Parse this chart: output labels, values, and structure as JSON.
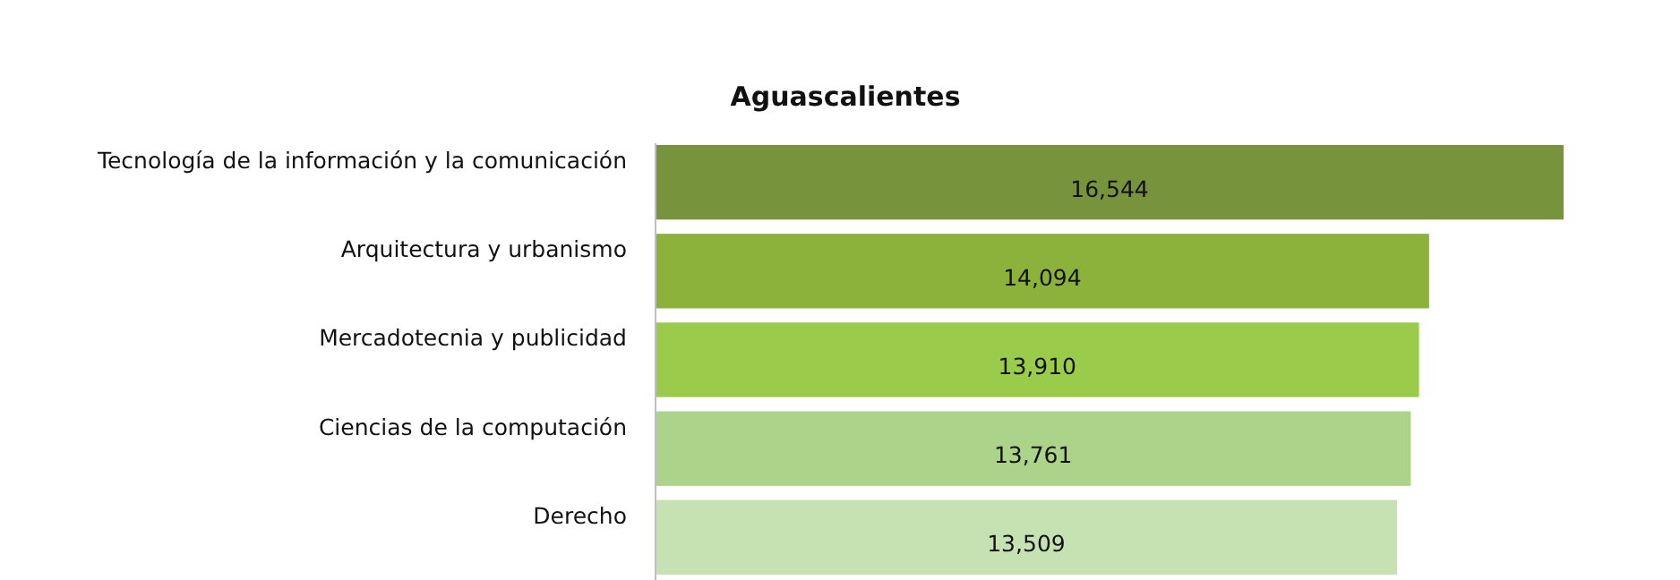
{
  "chart_data": {
    "type": "bar",
    "orientation": "horizontal",
    "title": "Aguascalientes",
    "categories": [
      "Tecnología de la información y la comunicación",
      "Arquitectura y urbanismo",
      "Mercadotecnia y publicidad",
      "Ciencias de la computación",
      "Derecho"
    ],
    "values": [
      16544,
      14094,
      13910,
      13761,
      13509
    ],
    "colors": [
      "#77933c",
      "#8cb23c",
      "#9acb4a",
      "#abd38a",
      "#c6e2b2"
    ],
    "value_labels": [
      "16,544",
      "14,094",
      "13,910",
      "13,761",
      "13,509"
    ]
  }
}
